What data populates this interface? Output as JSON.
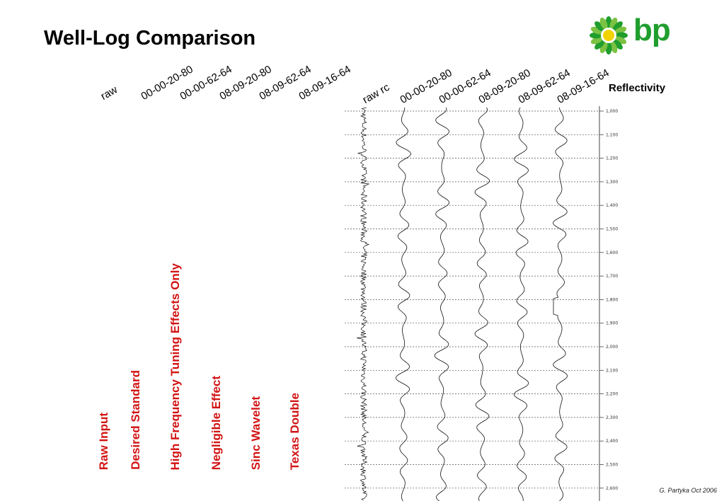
{
  "title": "Well-Log Comparison",
  "logo_text": "bp",
  "headers_left": [
    "raw",
    "00-00-20-80",
    "00-00-62-64",
    "08-09-20-80",
    "08-09-62-64",
    "08-09-16-64"
  ],
  "headers_right": [
    "raw rc",
    "00-00-20-80",
    "00-00-62-64",
    "08-09-20-80",
    "08-09-62-64",
    "08-09-16-64"
  ],
  "reflectivity_label": "Reflectivity",
  "vertical_labels": [
    "Raw Input",
    "Desired Standard",
    "High Frequency Tuning Effects Only",
    "Negligible Effect",
    "Sinc Wavelet",
    "Texas Double"
  ],
  "depth_ticks": [
    "1,000",
    "1,100",
    "1,200",
    "1,300",
    "1,400",
    "1,500",
    "1,600",
    "1,700",
    "1,800",
    "1,900",
    "2,000",
    "2,100",
    "2,200",
    "2,300",
    "2,400",
    "2,500",
    "2,600"
  ],
  "credit": "G. Partyka Oct 2006",
  "colors": {
    "accent_red": "#d21414",
    "bp_green": "#1f9e2d",
    "bp_yellow": "#f2d200"
  }
}
